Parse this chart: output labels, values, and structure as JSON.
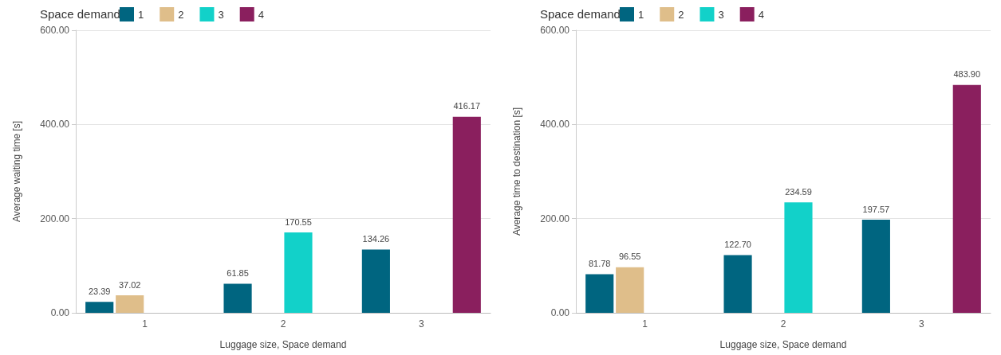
{
  "chart_data": [
    {
      "type": "bar",
      "xlabel": "Luggage size, Space demand",
      "ylabel": "Average waiting time [s]",
      "legend_title": "Space demand",
      "legend": "top left",
      "grid": "y",
      "categories": [
        "1",
        "2",
        "3"
      ],
      "ylim": [
        0,
        600
      ],
      "yticks": [
        {
          "value": 0,
          "label": "0.00"
        },
        {
          "value": 200,
          "label": "200.00"
        },
        {
          "value": 400,
          "label": "400.00"
        },
        {
          "value": 600,
          "label": "600.00"
        }
      ],
      "series": [
        {
          "name": "1",
          "color": "#006580",
          "values": [
            23.39,
            61.85,
            134.26
          ],
          "value_labels": [
            "23.39",
            "61.85",
            "134.26"
          ]
        },
        {
          "name": "2",
          "color": "#dfbe8a",
          "values": [
            37.02,
            null,
            null
          ],
          "value_labels": [
            "37.02",
            null,
            null
          ]
        },
        {
          "name": "3",
          "color": "#12d1c9",
          "values": [
            null,
            170.55,
            null
          ],
          "value_labels": [
            null,
            "170.55",
            null
          ]
        },
        {
          "name": "4",
          "color": "#8a1f5e",
          "values": [
            null,
            null,
            416.17
          ],
          "value_labels": [
            null,
            null,
            "416.17"
          ]
        }
      ]
    },
    {
      "type": "bar",
      "xlabel": "Luggage size, Space demand",
      "ylabel": "Average time to destination [s]",
      "legend_title": "Space demand",
      "legend": "top left",
      "grid": "y",
      "categories": [
        "1",
        "2",
        "3"
      ],
      "ylim": [
        0,
        600
      ],
      "yticks": [
        {
          "value": 0,
          "label": "0.00"
        },
        {
          "value": 200,
          "label": "200.00"
        },
        {
          "value": 400,
          "label": "400.00"
        },
        {
          "value": 600,
          "label": "600.00"
        }
      ],
      "series": [
        {
          "name": "1",
          "color": "#006580",
          "values": [
            81.78,
            122.7,
            197.57
          ],
          "value_labels": [
            "81.78",
            "122.70",
            "197.57"
          ]
        },
        {
          "name": "2",
          "color": "#dfbe8a",
          "values": [
            96.55,
            null,
            null
          ],
          "value_labels": [
            "96.55",
            null,
            null
          ]
        },
        {
          "name": "3",
          "color": "#12d1c9",
          "values": [
            null,
            234.59,
            null
          ],
          "value_labels": [
            null,
            "234.59",
            null
          ]
        },
        {
          "name": "4",
          "color": "#8a1f5e",
          "values": [
            null,
            null,
            483.9
          ],
          "value_labels": [
            null,
            null,
            "483.90"
          ]
        }
      ]
    }
  ]
}
